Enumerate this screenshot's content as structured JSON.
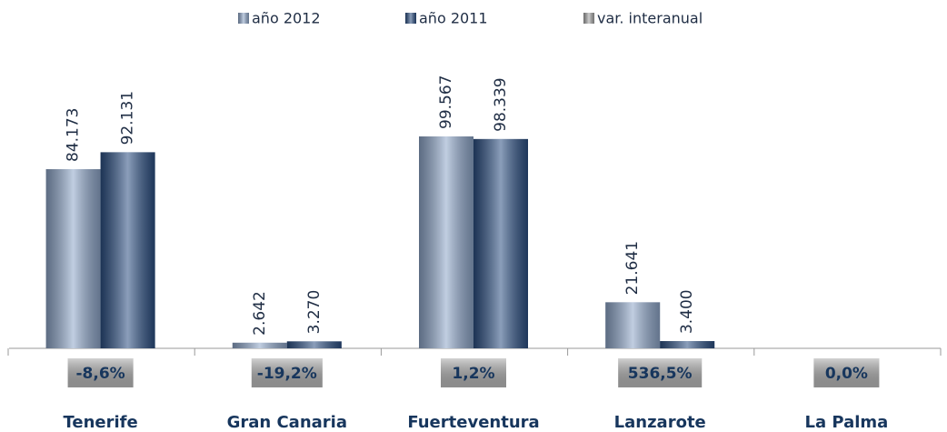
{
  "chart_data": {
    "type": "bar",
    "categories": [
      "Tenerife",
      "Gran Canaria",
      "Fuerteventura",
      "Lanzarote",
      "La Palma"
    ],
    "series": [
      {
        "name": "año 2012",
        "color": "#8ea6c9",
        "values": [
          84173,
          2642,
          99567,
          21641,
          null
        ],
        "value_labels": [
          "84.173",
          "2.642",
          "99.567",
          "21.641",
          null
        ]
      },
      {
        "name": "año 2011",
        "color": "#2c4f82",
        "values": [
          92131,
          3270,
          98339,
          3400,
          null
        ],
        "value_labels": [
          "92.131",
          "3.270",
          "98.339",
          "3.400",
          null
        ]
      },
      {
        "name": "var. interanual",
        "color": "#a6a6a6",
        "values": [
          -8.6,
          -19.2,
          1.2,
          536.5,
          0.0
        ],
        "value_labels": [
          "-8,6%",
          "-19,2%",
          "1,2%",
          "536,5%",
          "0,0%"
        ]
      }
    ]
  }
}
